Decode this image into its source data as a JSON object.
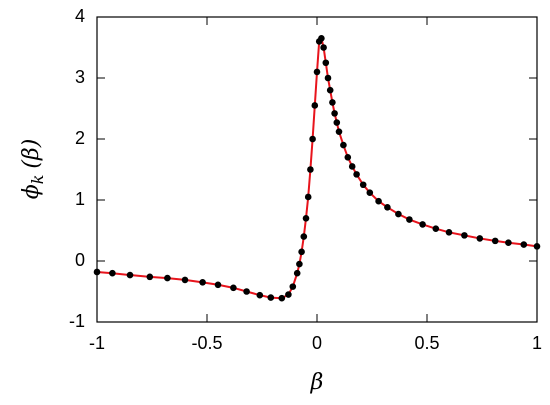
{
  "chart_data": {
    "type": "line",
    "xlabel": "β",
    "ylabel": "ϕ",
    "ylabel_subscript": "k",
    "ylabel_argument": "(β)",
    "xlim": [
      -1,
      1
    ],
    "ylim": [
      -1,
      4
    ],
    "xticks": [
      -1,
      -0.5,
      0,
      0.5,
      1
    ],
    "yticks": [
      -1,
      0,
      1,
      2,
      3,
      4
    ],
    "grid": false,
    "line_color": "#e8141c",
    "marker_color": "#000000",
    "x": [
      -1,
      -0.93,
      -0.85,
      -0.76,
      -0.68,
      -0.6,
      -0.52,
      -0.45,
      -0.38,
      -0.32,
      -0.26,
      -0.21,
      -0.16,
      -0.13,
      -0.11,
      -0.09,
      -0.08,
      -0.07,
      -0.06,
      -0.05,
      -0.04,
      -0.03,
      -0.02,
      -0.01,
      0,
      0.01,
      0.02,
      0.03,
      0.04,
      0.05,
      0.06,
      0.07,
      0.08,
      0.09,
      0.1,
      0.12,
      0.14,
      0.16,
      0.18,
      0.21,
      0.24,
      0.28,
      0.32,
      0.37,
      0.42,
      0.48,
      0.54,
      0.6,
      0.67,
      0.74,
      0.81,
      0.87,
      0.94,
      1.0
    ],
    "values": [
      -0.18,
      -0.2,
      -0.23,
      -0.26,
      -0.28,
      -0.31,
      -0.35,
      -0.39,
      -0.44,
      -0.5,
      -0.56,
      -0.6,
      -0.61,
      -0.55,
      -0.42,
      -0.2,
      -0.05,
      0.15,
      0.4,
      0.7,
      1.05,
      1.5,
      2.0,
      2.55,
      3.1,
      3.6,
      3.65,
      3.5,
      3.25,
      3.0,
      2.8,
      2.6,
      2.42,
      2.27,
      2.12,
      1.9,
      1.7,
      1.55,
      1.42,
      1.25,
      1.12,
      0.98,
      0.88,
      0.77,
      0.68,
      0.6,
      0.53,
      0.47,
      0.42,
      0.37,
      0.33,
      0.3,
      0.27,
      0.24
    ]
  }
}
